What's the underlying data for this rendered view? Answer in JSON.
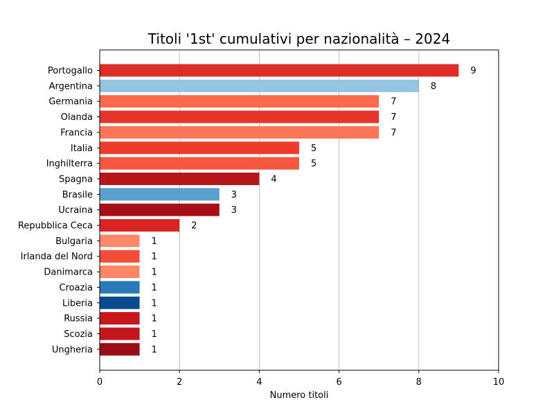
{
  "chart_data": {
    "type": "bar",
    "orientation": "horizontal",
    "title": "Titoli '1st' cumulativi per nazionalità – 2024",
    "xlabel": "Numero titoli",
    "ylabel": "",
    "xlim": [
      0,
      10
    ],
    "xticks": [
      "0",
      "2",
      "4",
      "6",
      "8",
      "10"
    ],
    "grid": "x",
    "legend": "none",
    "categories": [
      "Portogallo",
      "Argentina",
      "Germania",
      "Olanda",
      "Francia",
      "Italia",
      "Inghilterra",
      "Spagna",
      "Brasile",
      "Ucraina",
      "Repubblica Ceca",
      "Bulgaria",
      "Irlanda del Nord",
      "Danimarca",
      "Croazia",
      "Liberia",
      "Russia",
      "Scozia",
      "Ungheria"
    ],
    "values": [
      9,
      8,
      7,
      7,
      7,
      5,
      5,
      4,
      3,
      3,
      2,
      1,
      1,
      1,
      1,
      1,
      1,
      1,
      1
    ],
    "value_labels": [
      "9",
      "8",
      "7",
      "7",
      "7",
      "5",
      "5",
      "4",
      "3",
      "3",
      "2",
      "1",
      "1",
      "1",
      "1",
      "1",
      "1",
      "1",
      "1"
    ],
    "colors": [
      "#de2d26",
      "#93c4e1",
      "#fb6a4a",
      "#e6352b",
      "#fc7556",
      "#ef3b2c",
      "#f6573f",
      "#b5161c",
      "#5aa0cf",
      "#a50f15",
      "#d92523",
      "#fc8a6a",
      "#f44d38",
      "#fc8565",
      "#2a79b8",
      "#0a4a90",
      "#c5171c",
      "#c0161c",
      "#9b0d14"
    ]
  }
}
